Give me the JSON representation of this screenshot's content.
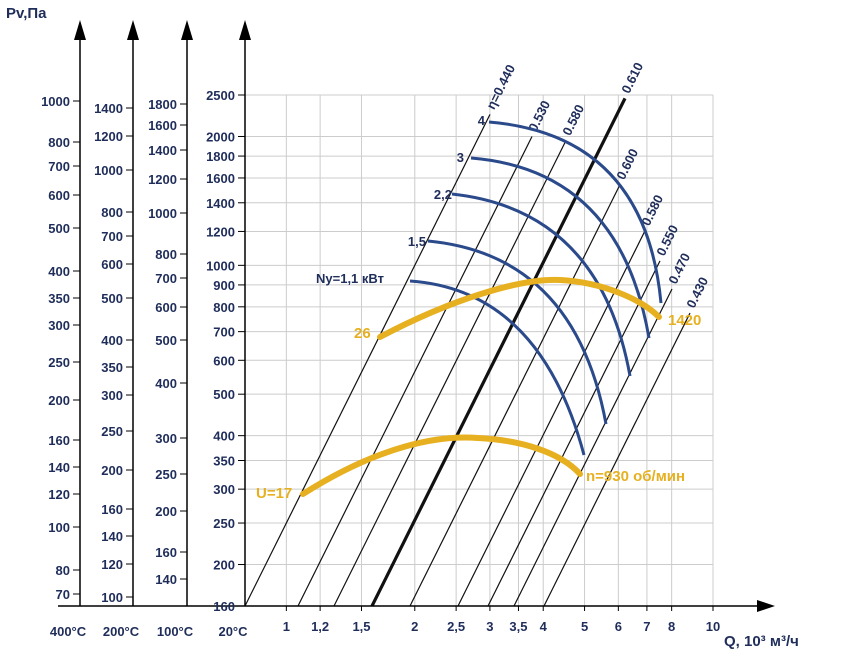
{
  "chart_data": {
    "type": "line",
    "xlabel": "Q, 10³ м³/ч",
    "ylabel": "Pv,Па",
    "x_axis": {
      "scale": "log",
      "range": [
        0.8,
        10
      ],
      "ticks": [
        1,
        1.2,
        1.5,
        2,
        2.5,
        3,
        3.5,
        4,
        5,
        6,
        7,
        8,
        10
      ],
      "tick_labels": [
        "1",
        "1,2",
        "1,5",
        "2",
        "2,5",
        "3",
        "3,5",
        "4",
        "5",
        "6",
        "7",
        "8",
        "10"
      ]
    },
    "y_axes": [
      {
        "temperature": "400°C",
        "ticks": [
          1000,
          800,
          700,
          600,
          500,
          400,
          350,
          300,
          250,
          200,
          160,
          140,
          120,
          100,
          80,
          70
        ]
      },
      {
        "temperature": "200°C",
        "ticks": [
          1400,
          1200,
          1000,
          800,
          700,
          600,
          500,
          400,
          350,
          300,
          250,
          200,
          160,
          140,
          120,
          100
        ]
      },
      {
        "temperature": "100°C",
        "ticks": [
          1800,
          1600,
          1400,
          1200,
          1000,
          800,
          700,
          600,
          500,
          400,
          300,
          250,
          200,
          160,
          140
        ]
      },
      {
        "temperature": "20°C",
        "range": [
          160,
          2500
        ],
        "ticks": [
          2500,
          2000,
          1800,
          1600,
          1400,
          1200,
          1000,
          900,
          800,
          700,
          600,
          500,
          400,
          350,
          300,
          250,
          200,
          160
        ]
      }
    ],
    "efficiency_lines": {
      "label_prefix": "η=",
      "values": [
        "0.440",
        "0.530",
        "0.580",
        "0.610",
        "0.600",
        "0.580",
        "0.550",
        "0.470",
        "0.430"
      ],
      "bold": "0.610",
      "slope": 2
    },
    "power_curves": {
      "label_prefix": "Ny=",
      "unit": "кВт",
      "series": [
        {
          "label": "1,1",
          "x_start": 2.2,
          "y_start": 870,
          "x_end": 4.55,
          "y_end": 390
        },
        {
          "label": "1,5",
          "x_start": 2.25,
          "y_start": 1050,
          "x_end": 5.1,
          "y_end": 380
        },
        {
          "label": "2,2",
          "x_start": 2.42,
          "y_start": 1440,
          "x_end": 5.6,
          "y_end": 470
        },
        {
          "label": "3",
          "x_start": 2.6,
          "y_start": 1790,
          "x_end": 6.6,
          "y_end": 570
        },
        {
          "label": "4",
          "x_start": 2.84,
          "y_start": 2160,
          "x_end": 7.7,
          "y_end": 780
        }
      ]
    },
    "speed_curves": {
      "unit": "об/мин",
      "series": [
        {
          "label_left": "U=17",
          "label_right": "n=930 об/мин",
          "x": [
            1.12,
            1.5,
            2.0,
            2.5,
            2.8,
            3.2,
            3.7,
            4.3,
            5.0
          ],
          "y": [
            290,
            350,
            375,
            385,
            385,
            385,
            370,
            350,
            320
          ]
        },
        {
          "label_left": "26",
          "label_right": "1420",
          "x": [
            1.65,
            2.2,
            2.9,
            3.6,
            4.5,
            5.4,
            6.5,
            7.55
          ],
          "y": [
            660,
            760,
            830,
            880,
            900,
            880,
            810,
            730
          ]
        }
      ]
    }
  }
}
